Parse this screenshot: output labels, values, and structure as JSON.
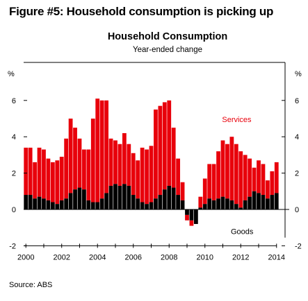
{
  "figure_title": "Figure #5: Household consumption is picking up",
  "source": "Source: ABS",
  "chart_data": {
    "type": "bar",
    "stacked": true,
    "title": "Household Consumption",
    "subtitle": "Year-ended change",
    "ylabel_left": "%",
    "ylabel_right": "%",
    "ylim": [
      -2,
      8
    ],
    "yticks": [
      -2,
      0,
      2,
      4,
      6
    ],
    "xlim": [
      2000,
      2014.6
    ],
    "xticks": [
      2000,
      2002,
      2004,
      2006,
      2008,
      2010,
      2012,
      2014
    ],
    "annotations": [
      {
        "text": "Services",
        "x": 2011.9,
        "y": 4.8,
        "color": "#e8000b"
      },
      {
        "text": "Goods",
        "x": 2012.2,
        "y": -1.35,
        "color": "#000000"
      }
    ],
    "series": [
      {
        "name": "Goods",
        "color": "#000000"
      },
      {
        "name": "Services",
        "color": "#e8000b"
      }
    ],
    "quarters": [
      2000.0,
      2000.25,
      2000.5,
      2000.75,
      2001.0,
      2001.25,
      2001.5,
      2001.75,
      2002.0,
      2002.25,
      2002.5,
      2002.75,
      2003.0,
      2003.25,
      2003.5,
      2003.75,
      2004.0,
      2004.25,
      2004.5,
      2004.75,
      2005.0,
      2005.25,
      2005.5,
      2005.75,
      2006.0,
      2006.25,
      2006.5,
      2006.75,
      2007.0,
      2007.25,
      2007.5,
      2007.75,
      2008.0,
      2008.25,
      2008.5,
      2008.75,
      2009.0,
      2009.25,
      2009.5,
      2009.75,
      2010.0,
      2010.25,
      2010.5,
      2010.75,
      2011.0,
      2011.25,
      2011.5,
      2011.75,
      2012.0,
      2012.25,
      2012.5,
      2012.75,
      2013.0,
      2013.25,
      2013.5,
      2013.75,
      2014.0
    ],
    "goods": [
      0.8,
      0.8,
      0.6,
      0.7,
      0.6,
      0.5,
      0.4,
      0.3,
      0.5,
      0.6,
      0.9,
      1.1,
      1.2,
      1.1,
      0.5,
      0.4,
      0.4,
      0.6,
      0.9,
      1.3,
      1.4,
      1.3,
      1.4,
      1.3,
      0.8,
      0.6,
      0.4,
      0.3,
      0.4,
      0.6,
      0.8,
      1.1,
      1.3,
      1.2,
      0.8,
      0.5,
      -0.3,
      -0.6,
      -0.8,
      0.1,
      0.3,
      0.6,
      0.5,
      0.6,
      0.7,
      0.6,
      0.5,
      0.3,
      0.1,
      0.5,
      0.7,
      1.0,
      0.9,
      0.8,
      0.6,
      0.8,
      0.9
    ],
    "totals": [
      3.4,
      3.4,
      2.6,
      3.4,
      3.3,
      2.8,
      2.6,
      2.7,
      2.9,
      3.9,
      5.0,
      4.5,
      3.9,
      3.3,
      3.3,
      5.0,
      6.1,
      6.0,
      6.0,
      3.9,
      3.8,
      3.6,
      4.2,
      3.6,
      3.1,
      2.7,
      3.4,
      3.3,
      3.5,
      5.5,
      5.7,
      5.9,
      6.0,
      4.5,
      2.8,
      1.5,
      -0.6,
      -0.9,
      -0.8,
      0.7,
      1.7,
      2.5,
      2.5,
      3.2,
      3.8,
      3.6,
      4.0,
      3.6,
      3.2,
      3.0,
      2.8,
      2.3,
      2.7,
      2.5,
      1.6,
      2.1,
      2.6
    ]
  }
}
